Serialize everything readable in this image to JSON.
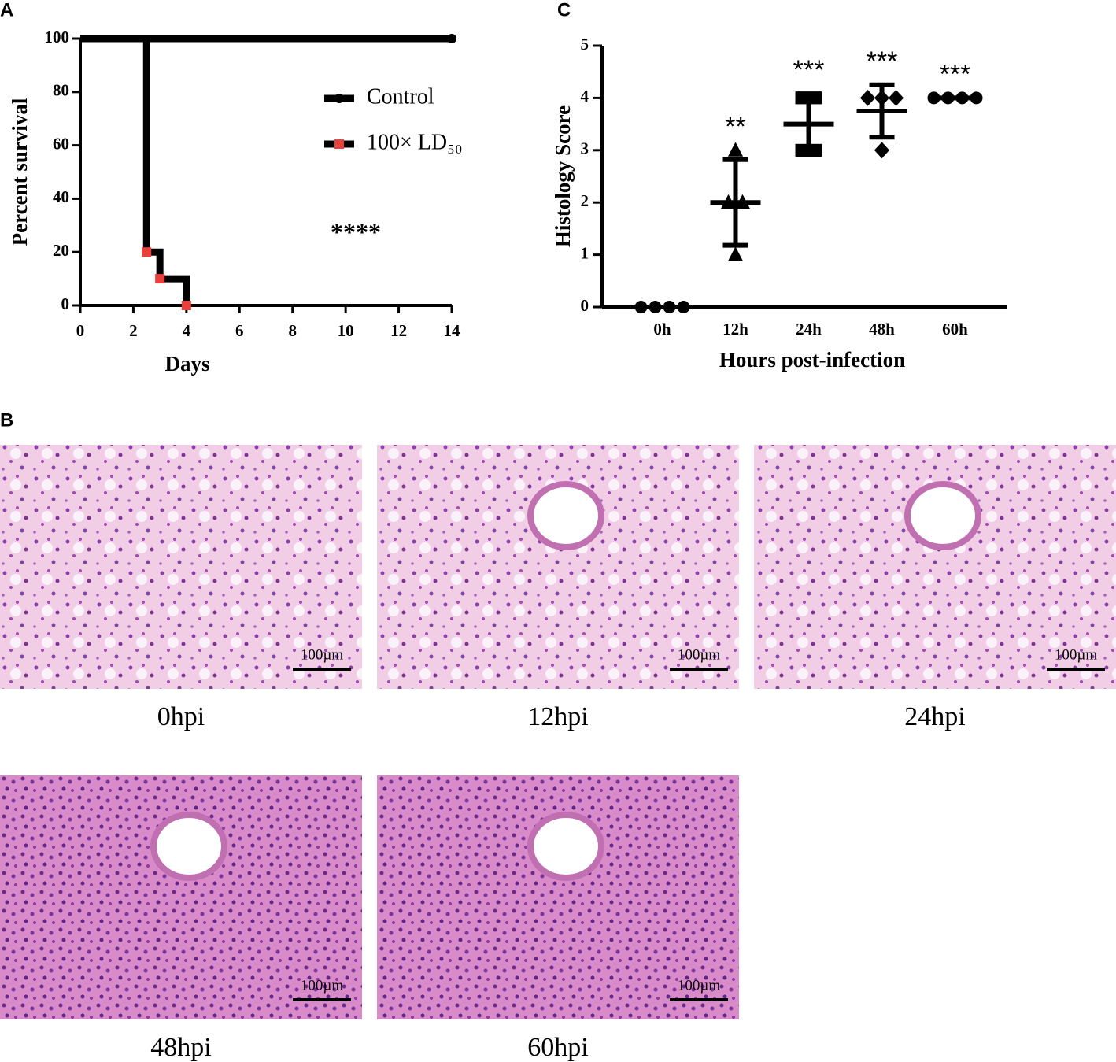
{
  "chart_data": [
    {
      "type": "step",
      "panel": "A",
      "xlabel": "Days",
      "ylabel": "Percent survival",
      "xlim": [
        0,
        14
      ],
      "xticks": [
        0,
        2,
        4,
        6,
        8,
        10,
        12,
        14
      ],
      "ylim": [
        0,
        100
      ],
      "yticks": [
        0,
        20,
        40,
        60,
        80,
        100
      ],
      "legend": "right",
      "series": [
        {
          "name": "Control",
          "color": "#000000",
          "marker": "circle",
          "x": [
            0,
            14
          ],
          "values": [
            100,
            100
          ]
        },
        {
          "name": "100× LD₅₀",
          "color": "#e8413c",
          "marker": "square",
          "x": [
            0,
            2.5,
            3,
            4
          ],
          "values": [
            100,
            20,
            10,
            0
          ]
        }
      ],
      "annotation": "****"
    },
    {
      "type": "scatter",
      "panel": "C",
      "xlabel": "Hours post-infection",
      "ylabel": "Histology Score",
      "categories": [
        "0h",
        "12h",
        "24h",
        "48h",
        "60h"
      ],
      "markers": [
        "circle",
        "triangle",
        "square",
        "diamond",
        "circle"
      ],
      "points": [
        [
          0,
          0,
          0,
          0
        ],
        [
          3,
          2,
          2,
          1
        ],
        [
          4,
          4,
          3,
          3
        ],
        [
          4,
          4,
          4,
          3
        ],
        [
          4,
          4,
          4,
          4
        ]
      ],
      "mean": [
        0,
        2,
        3.5,
        3.75,
        4
      ],
      "sd": [
        0,
        0.82,
        0.58,
        0.5,
        0
      ],
      "significance": [
        null,
        "**",
        "***",
        "***",
        "***"
      ],
      "ylim": [
        0,
        5
      ],
      "yticks": [
        0,
        1,
        2,
        3,
        4,
        5
      ]
    }
  ],
  "panel_b": "B",
  "micrographs": [
    {
      "caption": "0hpi",
      "scale_bar": "100µm"
    },
    {
      "caption": "12hpi",
      "scale_bar": "100µm"
    },
    {
      "caption": "24hpi",
      "scale_bar": "100µm"
    },
    {
      "caption": "48hpi",
      "scale_bar": "100µm"
    },
    {
      "caption": "60hpi",
      "scale_bar": "100µm"
    }
  ]
}
